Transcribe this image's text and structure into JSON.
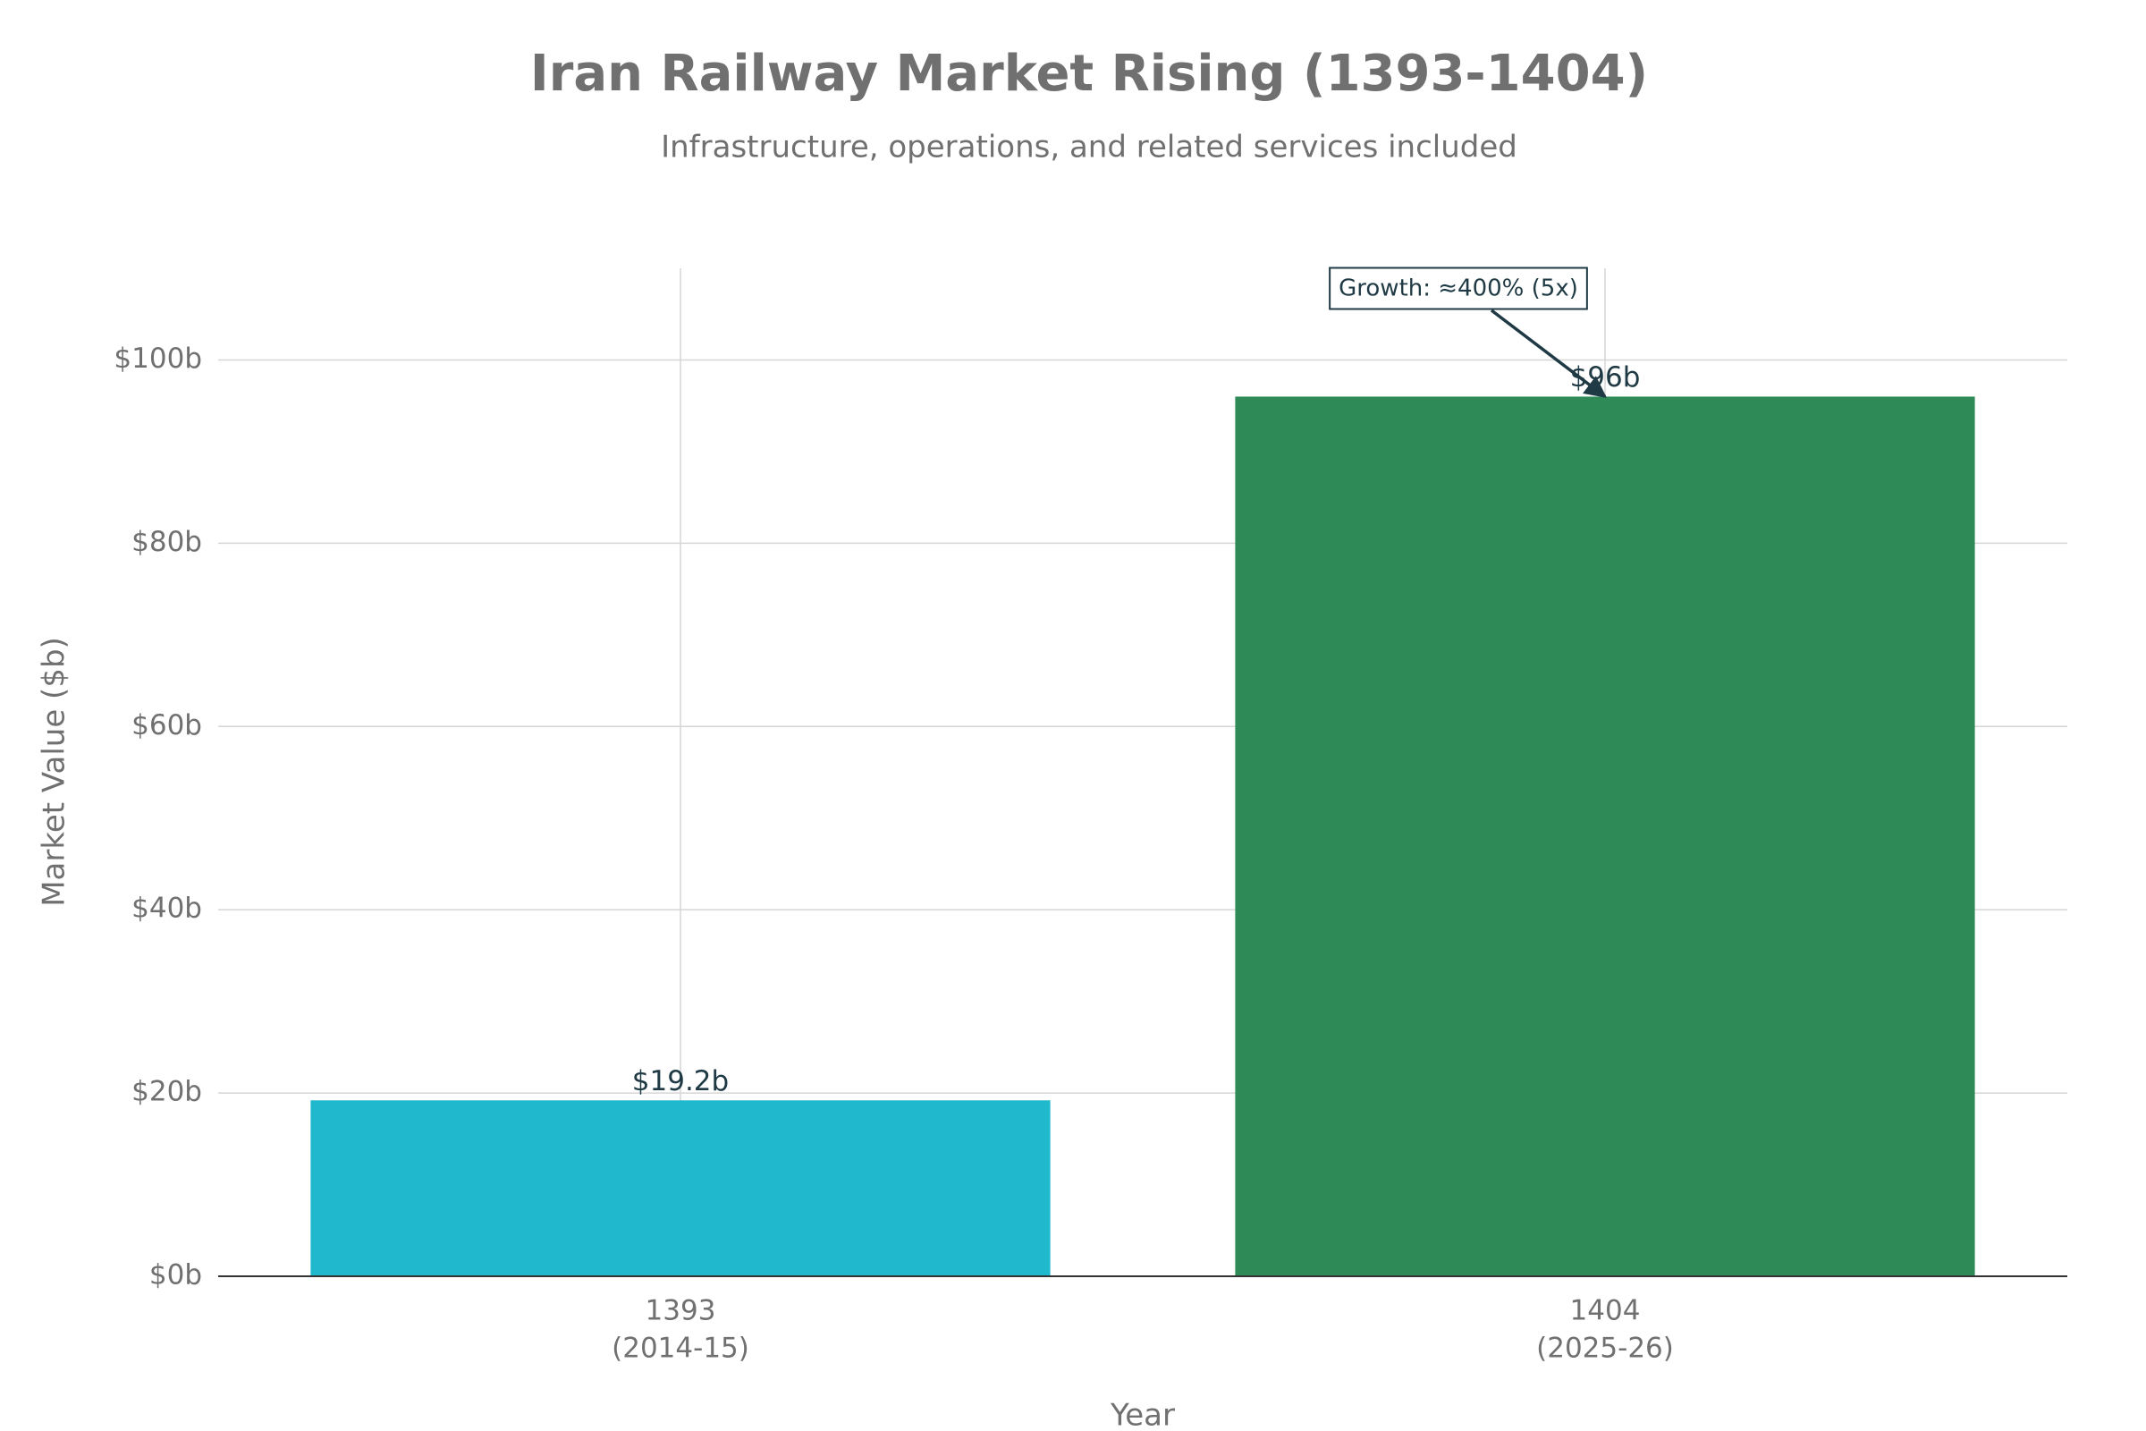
{
  "chart_data": {
    "type": "bar",
    "title": "Iran Railway Market Rising (1393-1404)",
    "subtitle": "Infrastructure, operations, and related services included",
    "x_label": "Year",
    "y_label": "Market Value ($b)",
    "categories": [
      "1393",
      "1404"
    ],
    "category_periods": [
      "(2014-15)",
      "(2025-26)"
    ],
    "values": [
      19.2,
      96
    ],
    "value_labels": [
      "$19.2b",
      "$96b"
    ],
    "colors": [
      "#20b8cd",
      "#2e8b57"
    ],
    "ylim": [
      0,
      110
    ],
    "yticks": [
      {
        "value": 0,
        "label": "$0b"
      },
      {
        "value": 20,
        "label": "$20b"
      },
      {
        "value": 40,
        "label": "$40b"
      },
      {
        "value": 60,
        "label": "$60b"
      },
      {
        "value": 80,
        "label": "$80b"
      },
      {
        "value": 100,
        "label": "$100b"
      }
    ],
    "grid": true,
    "annotation": {
      "text": "Growth: ≈400% (5x)",
      "target": 1
    }
  }
}
